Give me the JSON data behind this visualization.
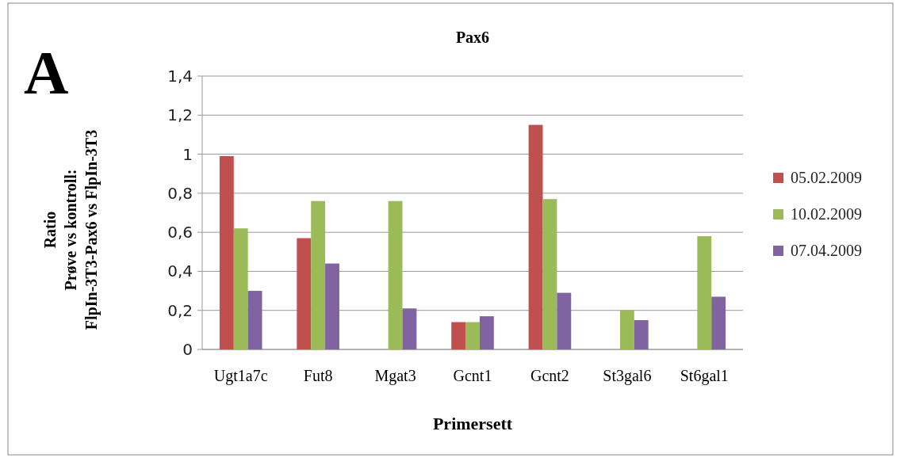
{
  "chart_data": {
    "type": "bar",
    "title": "Pax6",
    "xlabel": "Primersett",
    "ylabel": "Ratio\nPrøve vs kontroll:\nFlpIn-3T3-Pax6 vs FlpIn-3T3",
    "annotations": [
      "A"
    ],
    "categories": [
      "Ugt1a7c",
      "Fut8",
      "Mgat3",
      "Gcnt1",
      "Gcnt2",
      "St3gal6",
      "St6gal1"
    ],
    "series": [
      {
        "name": "05.02.2009",
        "color": "#c0504d",
        "values": [
          0.99,
          0.57,
          null,
          0.14,
          1.15,
          null,
          null
        ]
      },
      {
        "name": "10.02.2009",
        "color": "#9bbb59",
        "values": [
          0.62,
          0.76,
          0.76,
          0.14,
          0.77,
          0.2,
          0.58
        ]
      },
      {
        "name": "07.04.2009",
        "color": "#8064a2",
        "values": [
          0.3,
          0.44,
          0.21,
          0.17,
          0.29,
          0.15,
          0.27
        ]
      }
    ],
    "ylim": [
      0,
      1.4
    ],
    "yticks": [
      {
        "value": 0,
        "label": "0"
      },
      {
        "value": 0.2,
        "label": "0,2"
      },
      {
        "value": 0.4,
        "label": "0,4"
      },
      {
        "value": 0.6,
        "label": "0,6"
      },
      {
        "value": 0.8,
        "label": "0,8"
      },
      {
        "value": 1,
        "label": "1"
      },
      {
        "value": 1.2,
        "label": "1,2"
      },
      {
        "value": 1.4,
        "label": "1,4"
      }
    ],
    "grid": "y",
    "legend": "right"
  }
}
